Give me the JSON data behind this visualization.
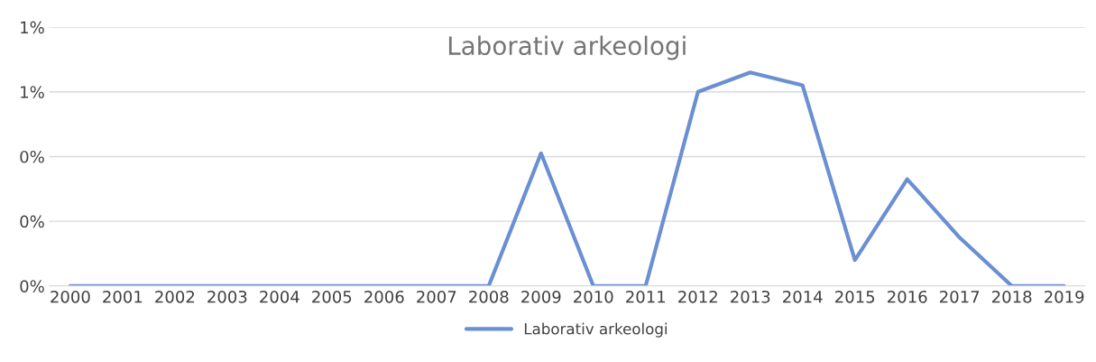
{
  "chart_data": {
    "type": "line",
    "title": "Laborativ arkeologi",
    "categories": [
      "2000",
      "2001",
      "2002",
      "2003",
      "2004",
      "2005",
      "2006",
      "2007",
      "2008",
      "2009",
      "2010",
      "2011",
      "2012",
      "2013",
      "2014",
      "2015",
      "2016",
      "2017",
      "2018",
      "2019"
    ],
    "series": [
      {
        "name": "Laborativ arkeologi",
        "color": "#6a8fd2",
        "values": [
          0,
          0,
          0,
          0,
          0,
          0,
          0,
          0,
          0,
          0.41,
          0,
          0,
          0.6,
          0.66,
          0.62,
          0.08,
          0.33,
          0.15,
          0,
          0
        ]
      }
    ],
    "ylim": [
      0,
      0.8
    ],
    "yticks": [
      {
        "value": 0,
        "label": "0%"
      },
      {
        "value": 0.2,
        "label": "0%"
      },
      {
        "value": 0.4,
        "label": "0%"
      },
      {
        "value": 0.6,
        "label": "1%"
      },
      {
        "value": 0.8,
        "label": "1%"
      }
    ],
    "grid": "y",
    "legend": "bottom",
    "marker": "none",
    "line_style": "solid"
  }
}
